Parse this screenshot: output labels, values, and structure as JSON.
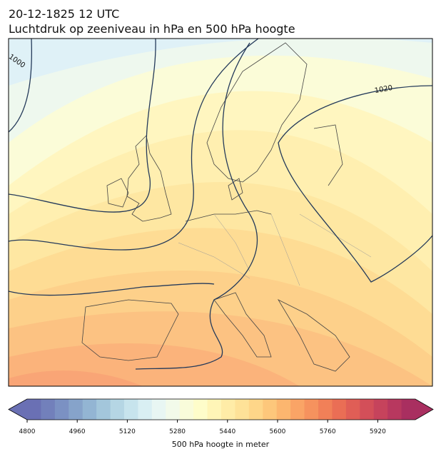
{
  "title": "20-12-1825 12 UTC",
  "subtitle": "Luchtdruk op zeeniveau in hPa en 500 hPa hoogte",
  "contour_labels": [
    "1000",
    "1020"
  ],
  "colorbar": {
    "label": "500 hPa hoogte in meter",
    "clim": [
      4800,
      6040
    ],
    "ticks": [
      4800,
      4960,
      5120,
      5280,
      5440,
      5600,
      5760,
      5920
    ],
    "colors": [
      "#6a70b4",
      "#7280bb",
      "#7b91c3",
      "#86a3ca",
      "#93b5d3",
      "#a3c6db",
      "#b5d6e4",
      "#c7e4ed",
      "#d9eff3",
      "#e8f6f3",
      "#f2faea",
      "#f9fcda",
      "#fefdca",
      "#fff5b7",
      "#ffeca7",
      "#fee298",
      "#fed689",
      "#fdc77b",
      "#fcb66f",
      "#faa466",
      "#f6925e",
      "#f18058",
      "#ea6e55",
      "#e05e56",
      "#d34f59",
      "#c6435c",
      "#b8385f",
      "#a92f60"
    ]
  }
}
